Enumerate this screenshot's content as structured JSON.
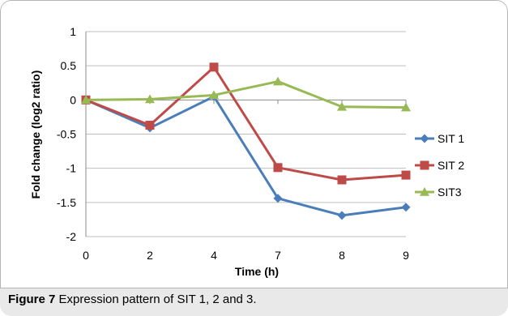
{
  "chart_data": {
    "type": "line",
    "title": "",
    "xlabel": "Time (h)",
    "ylabel": "Fold change (log2 ratio)",
    "categories": [
      "0",
      "2",
      "4",
      "7",
      "8",
      "9"
    ],
    "ylim": [
      -2,
      1
    ],
    "yticks": [
      1,
      0.5,
      0,
      -0.5,
      -1,
      -1.5,
      -2
    ],
    "ytick_labels": [
      "1",
      "0.5",
      "0",
      "-0.5",
      "-1",
      "-1.5",
      "-2"
    ],
    "grid": true,
    "legend_position": "right",
    "series": [
      {
        "name": "SIT 1",
        "marker": "diamond",
        "color": "#4a7ebb",
        "values": [
          0,
          -0.41,
          0.05,
          -1.44,
          -1.69,
          -1.57
        ]
      },
      {
        "name": "SIT 2",
        "marker": "square",
        "color": "#be4b48",
        "values": [
          0,
          -0.37,
          0.48,
          -0.99,
          -1.17,
          -1.1
        ]
      },
      {
        "name": "SIT3",
        "marker": "triangle",
        "color": "#98b954",
        "values": [
          0,
          0.01,
          0.07,
          0.27,
          -0.1,
          -0.11
        ]
      }
    ]
  },
  "caption": {
    "label": "Figure 7",
    "text": "Expression pattern of SIT 1, 2 and 3."
  }
}
